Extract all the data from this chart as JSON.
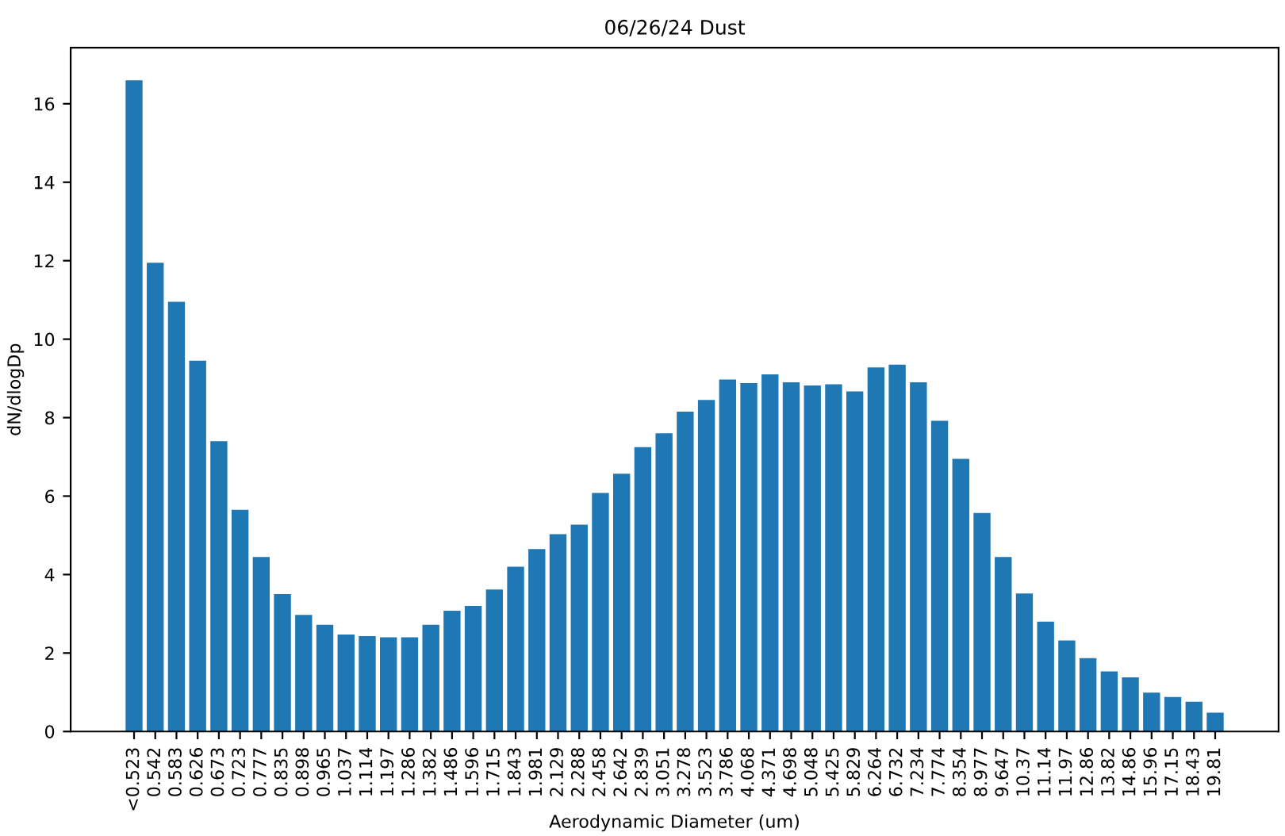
{
  "chart_data": {
    "type": "bar",
    "title": "06/26/24 Dust",
    "xlabel": "Aerodynamic Diameter (um)",
    "ylabel": "dN/dlogDp",
    "categories": [
      "<0.523",
      "0.542",
      "0.583",
      "0.626",
      "0.673",
      "0.723",
      "0.777",
      "0.835",
      "0.898",
      "0.965",
      "1.037",
      "1.114",
      "1.197",
      "1.286",
      "1.382",
      "1.486",
      "1.596",
      "1.715",
      "1.843",
      "1.981",
      "2.129",
      "2.288",
      "2.458",
      "2.642",
      "2.839",
      "3.051",
      "3.278",
      "3.523",
      "3.786",
      "4.068",
      "4.371",
      "4.698",
      "5.048",
      "5.425",
      "5.829",
      "6.264",
      "6.732",
      "7.234",
      "7.774",
      "8.354",
      "8.977",
      "9.647",
      "10.37",
      "11.14",
      "11.97",
      "12.86",
      "13.82",
      "14.86",
      "15.96",
      "17.15",
      "18.43",
      "19.81"
    ],
    "values": [
      16.6,
      11.95,
      10.95,
      9.45,
      7.4,
      5.65,
      4.45,
      3.5,
      2.97,
      2.72,
      2.47,
      2.43,
      2.4,
      2.4,
      2.72,
      3.08,
      3.2,
      3.62,
      4.2,
      4.65,
      5.03,
      5.27,
      6.08,
      6.57,
      7.25,
      7.6,
      8.15,
      8.45,
      8.97,
      8.88,
      9.1,
      8.9,
      8.82,
      8.85,
      8.67,
      9.28,
      9.35,
      8.9,
      7.92,
      6.95,
      5.57,
      4.45,
      3.52,
      2.8,
      2.32,
      1.87,
      1.53,
      1.38,
      0.99,
      0.88,
      0.76,
      0.48
    ],
    "color": "#1f77b4",
    "ylim": [
      0,
      17.43
    ],
    "yticks": [
      0,
      2,
      4,
      6,
      8,
      10,
      12,
      14,
      16
    ],
    "grid": false
  }
}
